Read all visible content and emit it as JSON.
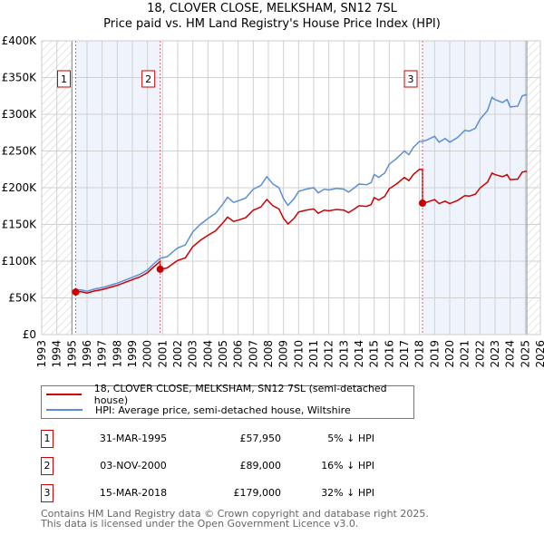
{
  "title": "18, CLOVER CLOSE, MELKSHAM, SN12 7SL",
  "subtitle": "Price paid vs. HM Land Registry's House Price Index (HPI)",
  "chart_data": {
    "type": "line",
    "xlim": [
      1993,
      2026
    ],
    "ylim": [
      0,
      400000
    ],
    "y_ticks": [
      {
        "v": 0,
        "label": "£0"
      },
      {
        "v": 50000,
        "label": "£50K"
      },
      {
        "v": 100000,
        "label": "£100K"
      },
      {
        "v": 150000,
        "label": "£150K"
      },
      {
        "v": 200000,
        "label": "£200K"
      },
      {
        "v": 250000,
        "label": "£250K"
      },
      {
        "v": 300000,
        "label": "£300K"
      },
      {
        "v": 350000,
        "label": "£350K"
      },
      {
        "v": 400000,
        "label": "£400K"
      }
    ],
    "x_ticks": [
      "1993",
      "1994",
      "1995",
      "1996",
      "1997",
      "1998",
      "1999",
      "2000",
      "2001",
      "2002",
      "2003",
      "2004",
      "2005",
      "2006",
      "2007",
      "2008",
      "2009",
      "2010",
      "2011",
      "2012",
      "2013",
      "2014",
      "2015",
      "2016",
      "2017",
      "2018",
      "2019",
      "2020",
      "2021",
      "2022",
      "2023",
      "2024",
      "2025",
      "2026"
    ],
    "data_range": [
      1995.0,
      2025.1
    ],
    "colors": {
      "property": "#cc0000",
      "hpi": "#5b8fd4",
      "shade": "#eef3fc"
    },
    "series": [
      {
        "name": "HPI: Average price, semi-detached house, Wiltshire",
        "x": [
          1995.0,
          1995.25,
          1995.6,
          1996,
          1996.5,
          1997,
          1997.5,
          1998,
          1998.5,
          1999,
          1999.5,
          2000,
          2000.4,
          2000.84,
          2001.3,
          2001.7,
          2002,
          2002.5,
          2003,
          2003.5,
          2004,
          2004.5,
          2005,
          2005.3,
          2005.7,
          2006,
          2006.5,
          2007,
          2007.5,
          2007.9,
          2008.3,
          2008.7,
          2009,
          2009.3,
          2009.7,
          2010,
          2010.5,
          2011,
          2011.3,
          2011.7,
          2012,
          2012.5,
          2013,
          2013.3,
          2013.7,
          2014,
          2014.5,
          2014.8,
          2015,
          2015.3,
          2015.7,
          2016,
          2016.5,
          2017,
          2017.3,
          2017.6,
          2018,
          2018.2,
          2018.5,
          2019,
          2019.3,
          2019.7,
          2020,
          2020.5,
          2021,
          2021.3,
          2021.7,
          2022,
          2022.5,
          2022.8,
          2023,
          2023.5,
          2023.8,
          2024,
          2024.5,
          2024.8,
          2025.1
        ],
        "values": [
          60000,
          60500,
          61000,
          59000,
          62000,
          64000,
          67000,
          70000,
          74000,
          78000,
          82000,
          88000,
          96000,
          104000,
          106000,
          113000,
          118000,
          122000,
          140000,
          150000,
          158000,
          165000,
          178000,
          187000,
          180000,
          182000,
          186000,
          198000,
          203000,
          215000,
          205000,
          200000,
          185000,
          176000,
          185000,
          195000,
          198000,
          200000,
          193000,
          198000,
          197000,
          199000,
          198000,
          194000,
          200000,
          205000,
          204000,
          207000,
          218000,
          214000,
          220000,
          232000,
          240000,
          250000,
          245000,
          255000,
          263000,
          263000,
          265000,
          270000,
          262000,
          267000,
          262000,
          268000,
          278000,
          277000,
          281000,
          293000,
          305000,
          323000,
          320000,
          316000,
          320000,
          310000,
          311000,
          325000,
          327000
        ]
      },
      {
        "name": "18, CLOVER CLOSE, MELKSHAM, SN12 7SL (semi-detached house)",
        "derived_from": "hpi indexed from sales"
      }
    ],
    "sales": [
      {
        "n": "1",
        "x": 1995.25,
        "date": "31-MAR-1995",
        "price": 57950,
        "price_label": "£57,950",
        "pct": "5% ↓ HPI"
      },
      {
        "n": "2",
        "x": 2000.84,
        "date": "03-NOV-2000",
        "price": 89000,
        "price_label": "£89,000",
        "pct": "16% ↓ HPI"
      },
      {
        "n": "3",
        "x": 2018.2,
        "date": "15-MAR-2018",
        "price": 179000,
        "price_label": "£179,000",
        "pct": "32% ↓ HPI"
      }
    ]
  },
  "legend": {
    "property": "18, CLOVER CLOSE, MELKSHAM, SN12 7SL (semi-detached house)",
    "hpi": "HPI: Average price, semi-detached house, Wiltshire"
  },
  "footer": {
    "line1": "Contains HM Land Registry data © Crown copyright and database right 2025.",
    "line2": "This data is licensed under the Open Government Licence v3.0."
  }
}
